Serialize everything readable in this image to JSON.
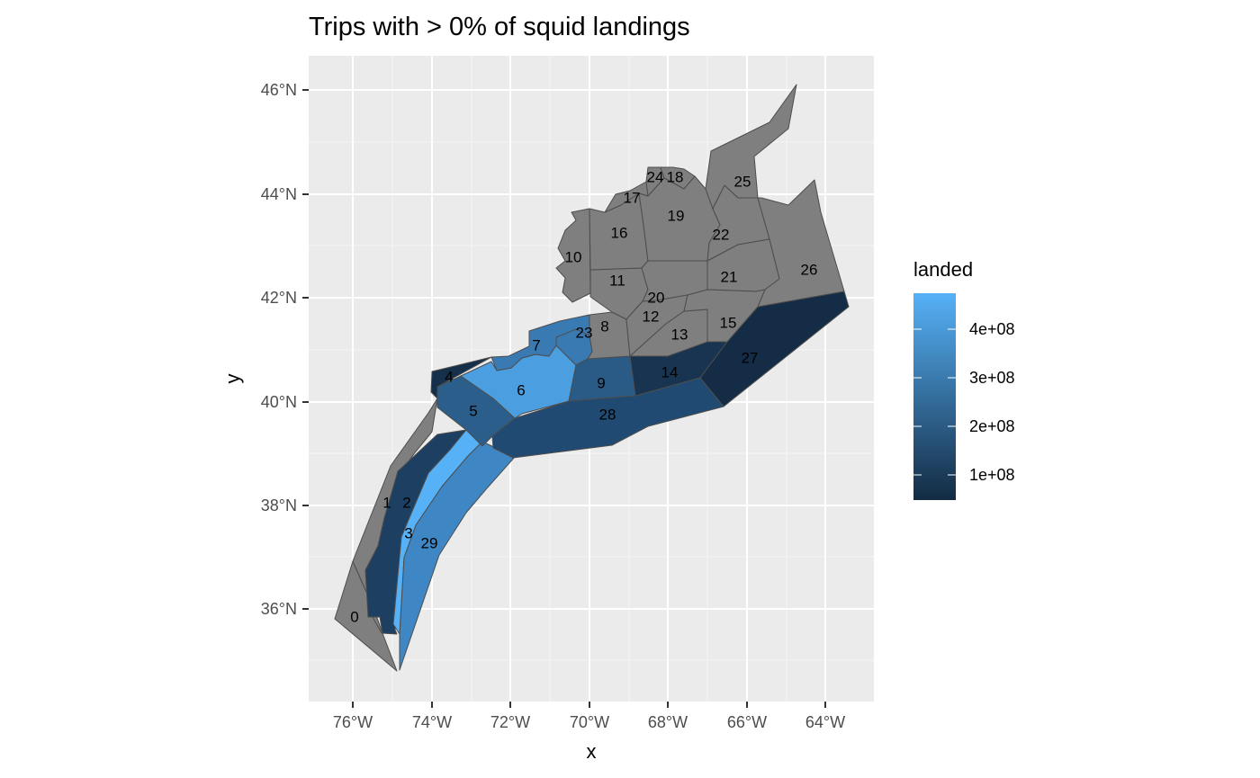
{
  "title": "Trips with > 0% of squid landings",
  "x_axis": {
    "title": "x",
    "ticks": [
      "76°W",
      "74°W",
      "72°W",
      "70°W",
      "68°W",
      "66°W",
      "64°W"
    ]
  },
  "y_axis": {
    "title": "y",
    "ticks": [
      "36°N",
      "38°N",
      "40°N",
      "42°N",
      "44°N",
      "46°N"
    ]
  },
  "legend": {
    "title": "landed",
    "labels": [
      "4e+08",
      "3e+08",
      "2e+08",
      "1e+08"
    ],
    "gradient": {
      "low": "#132b43",
      "high": "#56b1f7"
    }
  },
  "colors": {
    "panel": "#ebebeb",
    "grid": "#ffffff",
    "no_data": "#7f7f7f",
    "outline": "#4d4d4d"
  },
  "zones": [
    {
      "id": "0",
      "color": "#7f7f7f"
    },
    {
      "id": "1",
      "color": "#7f7f7f"
    },
    {
      "id": "2",
      "color": "#1d3f61"
    },
    {
      "id": "3",
      "color": "#56b1f7"
    },
    {
      "id": "4",
      "color": "#162f4b"
    },
    {
      "id": "5",
      "color": "#2b5e8a"
    },
    {
      "id": "6",
      "color": "#4b9ee0"
    },
    {
      "id": "7",
      "color": "#3a7ab3"
    },
    {
      "id": "8",
      "color": "#7f7f7f"
    },
    {
      "id": "9",
      "color": "#2a5b86"
    },
    {
      "id": "10",
      "color": "#7f7f7f"
    },
    {
      "id": "11",
      "color": "#7f7f7f"
    },
    {
      "id": "12",
      "color": "#7f7f7f"
    },
    {
      "id": "13",
      "color": "#7f7f7f"
    },
    {
      "id": "14",
      "color": "#183450"
    },
    {
      "id": "15",
      "color": "#7f7f7f"
    },
    {
      "id": "16",
      "color": "#7f7f7f"
    },
    {
      "id": "17",
      "color": "#7f7f7f"
    },
    {
      "id": "18",
      "color": "#7f7f7f"
    },
    {
      "id": "19",
      "color": "#7f7f7f"
    },
    {
      "id": "20",
      "color": "#7f7f7f"
    },
    {
      "id": "21",
      "color": "#7f7f7f"
    },
    {
      "id": "22",
      "color": "#7f7f7f"
    },
    {
      "id": "23",
      "color": "#3a7ab3"
    },
    {
      "id": "24",
      "color": "#7f7f7f"
    },
    {
      "id": "25",
      "color": "#7f7f7f"
    },
    {
      "id": "26",
      "color": "#7f7f7f"
    },
    {
      "id": "27",
      "color": "#152c46"
    },
    {
      "id": "28",
      "color": "#214a72"
    },
    {
      "id": "29",
      "color": "#3f86c5"
    }
  ]
}
